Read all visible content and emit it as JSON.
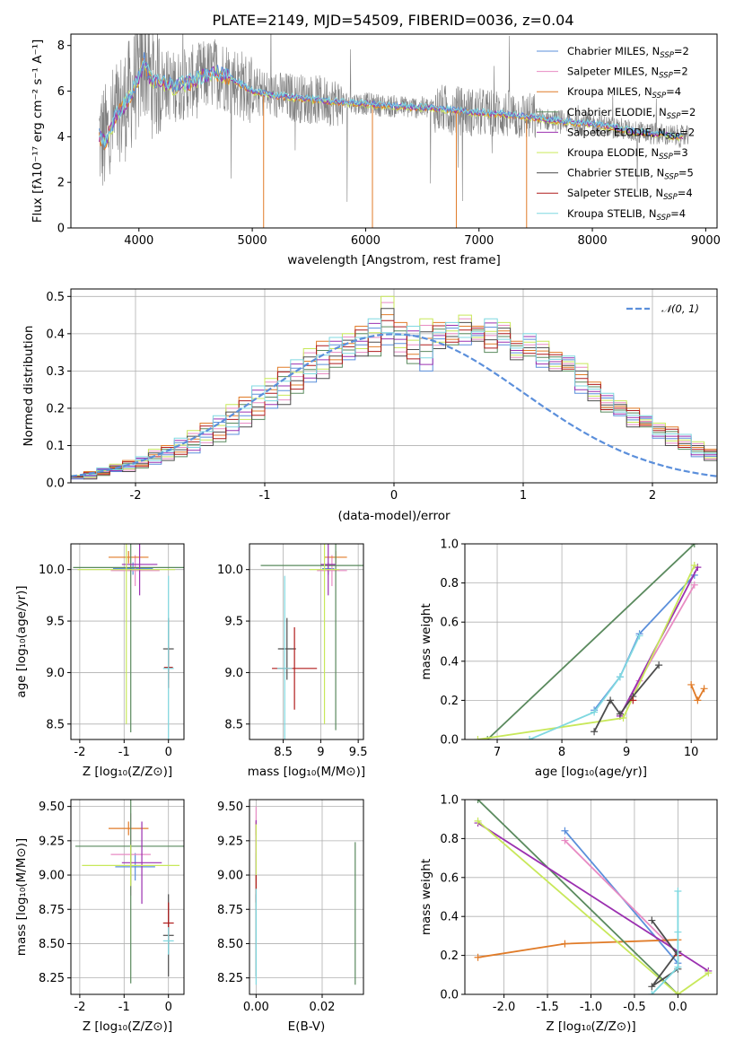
{
  "figure_title": "PLATE=2149, MJD=54509, FIBERID=0036, z=0.04",
  "colors": {
    "Chabrier MILES": "#5b8fdb",
    "Salpeter MILES": "#e88bc3",
    "Kroupa MILES": "#e07b28",
    "Chabrier ELODIE": "#5a8a5e",
    "Salpeter ELODIE": "#9b30b0",
    "Kroupa ELODIE": "#c8e85a",
    "Chabrier STELIB": "#4d4d4d",
    "Salpeter STELIB": "#b01c1c",
    "Kroupa STELIB": "#7fd8e0",
    "data": "#808080",
    "normal": "#5b8fdb"
  },
  "chart_data": [
    {
      "id": "spectrum",
      "type": "line",
      "xlabel": "wavelength [Angstrom, rest frame]",
      "ylabel": "Flux [fλ10⁻¹⁷ erg cm⁻² s⁻¹ A⁻¹]",
      "xlim": [
        3400,
        9100
      ],
      "ylim": [
        0,
        8.5
      ],
      "xticks": [
        4000,
        5000,
        6000,
        7000,
        8000,
        9000
      ],
      "yticks": [
        0,
        2,
        4,
        6,
        8
      ],
      "legend_position": "top-right",
      "legend": [
        {
          "model": "Chabrier MILES",
          "nssp": "2"
        },
        {
          "model": "Salpeter MILES",
          "nssp": "2"
        },
        {
          "model": "Kroupa MILES",
          "nssp": "4"
        },
        {
          "model": "Chabrier ELODIE",
          "nssp": "2"
        },
        {
          "model": "Salpeter ELODIE",
          "nssp": "2"
        },
        {
          "model": "Kroupa ELODIE",
          "nssp": "3"
        },
        {
          "model": "Chabrier STELIB",
          "nssp": "5"
        },
        {
          "model": "Salpeter STELIB",
          "nssp": "4"
        },
        {
          "model": "Kroupa STELIB",
          "nssp": "4"
        }
      ],
      "model_curve": {
        "x": [
          3650,
          3700,
          3800,
          3900,
          4000,
          4050,
          4100,
          4200,
          4300,
          4400,
          4500,
          4600,
          4700,
          4800,
          4900,
          5000,
          5200,
          5400,
          5600,
          5800,
          6000,
          6200,
          6400,
          6600,
          6800,
          7000,
          7200,
          7400,
          7600,
          7800,
          8000,
          8200,
          8400,
          8600,
          8800
        ],
        "y": [
          4.0,
          3.8,
          4.9,
          5.6,
          6.6,
          7.4,
          6.5,
          6.4,
          6.2,
          6.3,
          6.5,
          6.7,
          6.8,
          6.6,
          6.3,
          6.0,
          5.8,
          5.7,
          5.6,
          5.5,
          5.45,
          5.35,
          5.3,
          5.25,
          5.15,
          5.05,
          5.0,
          4.9,
          4.75,
          4.65,
          4.55,
          4.4,
          4.2,
          4.1,
          4.0
        ]
      }
    },
    {
      "id": "residuals",
      "type": "histogram",
      "xlabel": "(data-model)/error",
      "ylabel": "Normed distribution",
      "xlim": [
        -2.5,
        2.5
      ],
      "ylim": [
        0,
        0.52
      ],
      "xticks": [
        -2,
        -1,
        0,
        1,
        2
      ],
      "yticks": [
        0.0,
        0.1,
        0.2,
        0.3,
        0.4,
        0.5
      ],
      "reference_curve": {
        "name": "𝒩(0, 1)",
        "mu": 0,
        "sigma": 1
      },
      "bin_width": 0.1,
      "envelope_min": [
        0.01,
        0.01,
        0.02,
        0.03,
        0.03,
        0.04,
        0.05,
        0.06,
        0.07,
        0.08,
        0.1,
        0.11,
        0.13,
        0.15,
        0.17,
        0.2,
        0.21,
        0.24,
        0.27,
        0.28,
        0.31,
        0.33,
        0.34,
        0.34,
        0.37,
        0.34,
        0.32,
        0.3,
        0.36,
        0.37,
        0.37,
        0.38,
        0.35,
        0.37,
        0.33,
        0.34,
        0.31,
        0.3,
        0.3,
        0.24,
        0.22,
        0.19,
        0.18,
        0.15,
        0.15,
        0.12,
        0.1,
        0.09,
        0.07,
        0.06,
        0.05
      ],
      "envelope_max": [
        0.02,
        0.03,
        0.04,
        0.05,
        0.06,
        0.07,
        0.09,
        0.1,
        0.12,
        0.14,
        0.16,
        0.18,
        0.21,
        0.23,
        0.26,
        0.28,
        0.31,
        0.33,
        0.36,
        0.38,
        0.39,
        0.4,
        0.42,
        0.44,
        0.5,
        0.43,
        0.42,
        0.44,
        0.43,
        0.43,
        0.45,
        0.42,
        0.44,
        0.43,
        0.38,
        0.4,
        0.38,
        0.35,
        0.34,
        0.32,
        0.27,
        0.24,
        0.22,
        0.2,
        0.18,
        0.16,
        0.15,
        0.13,
        0.11,
        0.09,
        0.08
      ]
    },
    {
      "id": "age-vs-Z",
      "type": "errorbar",
      "xlabel": "Z [log₁₀(Z/Z⊙)]",
      "ylabel": "age  [log₁₀(age/yr)]",
      "xlim": [
        -2.2,
        0.35
      ],
      "ylim": [
        8.35,
        10.25
      ],
      "xticks": [
        -2,
        -1,
        0
      ],
      "yticks": [
        8.5,
        9.0,
        9.5,
        10.0
      ],
      "points": [
        {
          "model": "Chabrier MILES",
          "x": -0.8,
          "xerr": 0.45,
          "y": 10.01,
          "yerr": 0.06
        },
        {
          "model": "Salpeter MILES",
          "x": -0.75,
          "xerr": 0.55,
          "y": 9.99,
          "yerr": 0.15
        },
        {
          "model": "Kroupa MILES",
          "x": -0.9,
          "xerr": 0.45,
          "y": 10.12,
          "yerr": 0.06
        },
        {
          "model": "Chabrier ELODIE",
          "x": -0.85,
          "xerr": 1.3,
          "y": 10.02,
          "yerr": 1.6
        },
        {
          "model": "Salpeter ELODIE",
          "x": -0.65,
          "xerr": 0.4,
          "y": 10.05,
          "yerr": 0.3
        },
        {
          "model": "Kroupa ELODIE",
          "x": -0.95,
          "xerr": 1.1,
          "y": 10.0,
          "yerr": 1.5
        },
        {
          "model": "Chabrier STELIB",
          "x": 0.0,
          "xerr": 0.12,
          "y": 9.23,
          "yerr": 0.3
        },
        {
          "model": "Salpeter STELIB",
          "x": 0.0,
          "xerr": 0.1,
          "y": 9.05,
          "yerr": 0.2
        },
        {
          "model": "Kroupa STELIB",
          "x": 0.0,
          "xerr": 0.12,
          "y": 9.04,
          "yerr": 0.9
        }
      ]
    },
    {
      "id": "age-vs-mass",
      "type": "errorbar",
      "xlabel": "mass [log₁₀(M/M⊙)]",
      "ylabel": "",
      "xlim": [
        8.05,
        9.57
      ],
      "ylim": [
        8.35,
        10.25
      ],
      "xticks": [
        8.5,
        9.0,
        9.5
      ],
      "yticks": [
        8.5,
        9.0,
        9.5,
        10.0
      ],
      "points": [
        {
          "model": "Chabrier MILES",
          "x": 9.1,
          "xerr": 0.08,
          "y": 10.01,
          "yerr": 0.06
        },
        {
          "model": "Salpeter MILES",
          "x": 9.15,
          "xerr": 0.2,
          "y": 9.99,
          "yerr": 0.15
        },
        {
          "model": "Kroupa MILES",
          "x": 9.2,
          "xerr": 0.15,
          "y": 10.12,
          "yerr": 0.06
        },
        {
          "model": "Chabrier ELODIE",
          "x": 9.2,
          "xerr": 1.0,
          "y": 10.04,
          "yerr": 1.6
        },
        {
          "model": "Salpeter ELODIE",
          "x": 9.1,
          "xerr": 0.1,
          "y": 10.05,
          "yerr": 0.3
        },
        {
          "model": "Kroupa ELODIE",
          "x": 9.05,
          "xerr": 0.2,
          "y": 10.0,
          "yerr": 1.5
        },
        {
          "model": "Chabrier STELIB",
          "x": 8.55,
          "xerr": 0.12,
          "y": 9.23,
          "yerr": 0.3
        },
        {
          "model": "Salpeter STELIB",
          "x": 8.65,
          "xerr": 0.3,
          "y": 9.04,
          "yerr": 0.4
        },
        {
          "model": "Kroupa STELIB",
          "x": 8.52,
          "xerr": 0.1,
          "y": 9.04,
          "yerr": 0.9
        }
      ]
    },
    {
      "id": "weight-vs-age",
      "type": "line",
      "xlabel": "age  [log₁₀(age/yr)]",
      "ylabel": "mass weight",
      "xlim": [
        6.5,
        10.4
      ],
      "ylim": [
        0,
        1.0
      ],
      "xticks": [
        7,
        8,
        9,
        10
      ],
      "yticks": [
        0.0,
        0.2,
        0.4,
        0.6,
        0.8,
        1.0
      ],
      "series": [
        {
          "model": "Chabrier MILES",
          "x": [
            8.5,
            8.9,
            9.2,
            10.05
          ],
          "y": [
            0.15,
            0.32,
            0.54,
            0.84
          ]
        },
        {
          "model": "Salpeter MILES",
          "x": [
            8.9,
            9.2,
            10.05
          ],
          "y": [
            0.12,
            0.3,
            0.79
          ]
        },
        {
          "model": "Kroupa MILES",
          "x": [
            10.0,
            10.1,
            10.2
          ],
          "y": [
            0.28,
            0.2,
            0.26
          ]
        },
        {
          "model": "Chabrier ELODIE",
          "x": [
            6.85,
            10.05
          ],
          "y": [
            0.0,
            1.0
          ]
        },
        {
          "model": "Salpeter ELODIE",
          "x": [
            8.9,
            10.1
          ],
          "y": [
            0.12,
            0.88
          ]
        },
        {
          "model": "Kroupa ELODIE",
          "x": [
            6.7,
            8.95,
            10.05
          ],
          "y": [
            0.0,
            0.11,
            0.89
          ]
        },
        {
          "model": "Chabrier STELIB",
          "x": [
            8.5,
            8.75,
            8.9,
            9.1,
            9.5
          ],
          "y": [
            0.04,
            0.2,
            0.13,
            0.22,
            0.38
          ]
        },
        {
          "model": "Salpeter STELIB",
          "x": [
            9.1
          ],
          "y": [
            0.2
          ]
        },
        {
          "model": "Kroupa STELIB",
          "x": [
            7.5,
            8.5,
            8.9,
            9.2
          ],
          "y": [
            0.0,
            0.14,
            0.32,
            0.53
          ]
        }
      ]
    },
    {
      "id": "mass-vs-Z",
      "type": "errorbar",
      "xlabel": "Z [log₁₀(Z/Z⊙)]",
      "ylabel": "mass [log₁₀(M/M⊙)]",
      "xlim": [
        -2.2,
        0.35
      ],
      "ylim": [
        8.13,
        9.55
      ],
      "xticks": [
        -2,
        -1,
        0
      ],
      "yticks": [
        8.25,
        8.5,
        8.75,
        9.0,
        9.25,
        9.5
      ],
      "points": [
        {
          "model": "Chabrier MILES",
          "x": -0.75,
          "xerr": 0.45,
          "y": 9.06,
          "yerr": 0.1
        },
        {
          "model": "Salpeter MILES",
          "x": -0.85,
          "xerr": 0.45,
          "y": 9.15,
          "yerr": 0.3
        },
        {
          "model": "Kroupa MILES",
          "x": -0.9,
          "xerr": 0.45,
          "y": 9.34,
          "yerr": 0.05
        },
        {
          "model": "Chabrier ELODIE",
          "x": -0.85,
          "xerr": 1.25,
          "y": 9.21,
          "yerr": 1.0
        },
        {
          "model": "Salpeter ELODIE",
          "x": -0.6,
          "xerr": 0.45,
          "y": 9.09,
          "yerr": 0.3
        },
        {
          "model": "Kroupa ELODIE",
          "x": -0.85,
          "xerr": 1.1,
          "y": 9.07,
          "yerr": 0.15
        },
        {
          "model": "Chabrier STELIB",
          "x": 0.0,
          "xerr": 0.12,
          "y": 8.56,
          "yerr": 0.3
        },
        {
          "model": "Salpeter STELIB",
          "x": 0.0,
          "xerr": 0.12,
          "y": 8.65,
          "yerr": 0.15
        },
        {
          "model": "Kroupa STELIB",
          "x": 0.0,
          "xerr": 0.12,
          "y": 8.52,
          "yerr": 0.1
        }
      ]
    },
    {
      "id": "mass-vs-ebv",
      "type": "errorbar",
      "xlabel": "E(B-V)",
      "ylabel": "",
      "xlim": [
        -0.002,
        0.0325
      ],
      "ylim": [
        8.13,
        9.55
      ],
      "xticks": [
        0.0,
        0.02
      ],
      "yticks": [
        8.25,
        8.5,
        8.75,
        9.0,
        9.25,
        9.5
      ],
      "points": [
        {
          "model": "Chabrier MILES",
          "x": 0.0,
          "y": 9.06,
          "yerr": 0.1
        },
        {
          "model": "Salpeter MILES",
          "x": 0.0,
          "y": 9.3,
          "yerr": 0.2
        },
        {
          "model": "Kroupa MILES",
          "x": 0.0,
          "y": 9.34,
          "yerr": 0.05
        },
        {
          "model": "Chabrier ELODIE",
          "x": 0.03,
          "y": 8.72,
          "yerr": 0.52
        },
        {
          "model": "Salpeter ELODIE",
          "x": 0.0,
          "y": 9.1,
          "yerr": 0.3
        },
        {
          "model": "Kroupa ELODIE",
          "x": 0.0,
          "y": 9.07,
          "yerr": 0.3
        },
        {
          "model": "Chabrier STELIB",
          "x": 0.0,
          "y": 8.56,
          "yerr": 0.3
        },
        {
          "model": "Salpeter STELIB",
          "x": 0.0,
          "y": 8.9,
          "yerr": 0.1
        },
        {
          "model": "Kroupa STELIB",
          "x": 0.0,
          "y": 8.55,
          "yerr": 0.35
        }
      ]
    },
    {
      "id": "weight-vs-Z",
      "type": "line",
      "xlabel": "Z [log₁₀(Z/Z⊙)]",
      "ylabel": "mass weight",
      "xlim": [
        -2.45,
        0.45
      ],
      "ylim": [
        0,
        1.0
      ],
      "xticks": [
        -2.0,
        -1.5,
        -1.0,
        -0.5,
        0.0
      ],
      "yticks": [
        0.0,
        0.2,
        0.4,
        0.6,
        0.8,
        1.0
      ],
      "series": [
        {
          "model": "Chabrier MILES",
          "x": [
            -1.3,
            0.0
          ],
          "y": [
            0.84,
            0.16
          ]
        },
        {
          "model": "Salpeter MILES",
          "x": [
            -1.3,
            0.0
          ],
          "y": [
            0.79,
            0.21
          ]
        },
        {
          "model": "Kroupa MILES",
          "x": [
            -2.3,
            -1.3,
            0.0
          ],
          "y": [
            0.19,
            0.26,
            0.28
          ]
        },
        {
          "model": "Chabrier ELODIE",
          "x": [
            -2.3,
            0.0
          ],
          "y": [
            1.0,
            0.0
          ]
        },
        {
          "model": "Salpeter ELODIE",
          "x": [
            -2.3,
            0.35
          ],
          "y": [
            0.88,
            0.12
          ]
        },
        {
          "model": "Kroupa ELODIE",
          "x": [
            -2.3,
            0.0,
            0.35
          ],
          "y": [
            0.89,
            0.0,
            0.11
          ]
        },
        {
          "model": "Chabrier STELIB",
          "x": [
            -0.3,
            0.0,
            0.0,
            -0.3,
            0.0
          ],
          "y": [
            0.38,
            0.2,
            0.13,
            0.04,
            0.22
          ]
        },
        {
          "model": "Salpeter STELIB",
          "x": [
            0.0
          ],
          "y": [
            0.2
          ]
        },
        {
          "model": "Kroupa STELIB",
          "x": [
            0.0,
            0.0,
            0.0,
            -0.3
          ],
          "y": [
            0.53,
            0.32,
            0.14,
            0.0
          ]
        }
      ]
    }
  ]
}
